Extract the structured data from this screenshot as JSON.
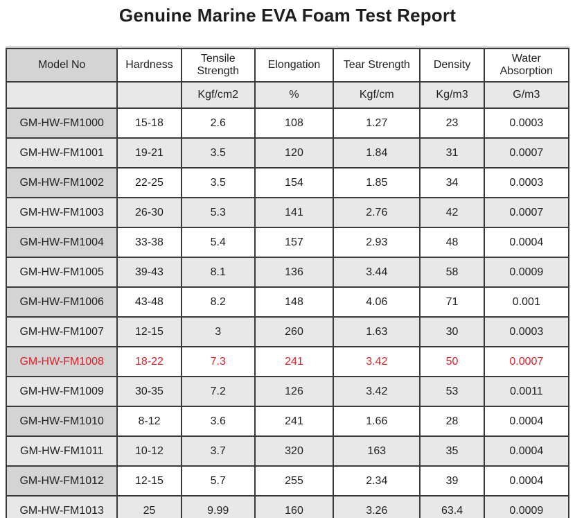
{
  "page": {
    "title": "Genuine Marine EVA Foam Test Report"
  },
  "table": {
    "columns": [
      {
        "label": "Model No",
        "unit": ""
      },
      {
        "label": "Hardness",
        "unit": ""
      },
      {
        "label": "Tensile Strength",
        "unit": "Kgf/cm2"
      },
      {
        "label": "Elongation",
        "unit": "%"
      },
      {
        "label": "Tear Strength",
        "unit": "Kgf/cm"
      },
      {
        "label": "Density",
        "unit": "Kg/m3"
      },
      {
        "label": "Water Absorption",
        "unit": "G/m3"
      }
    ],
    "rows": [
      {
        "model": "GM-HW-FM1000",
        "hardness": "15-18",
        "tensile": "2.6",
        "elongation": "108",
        "tear": "1.27",
        "density": "23",
        "water": "0.0003",
        "highlight": false
      },
      {
        "model": "GM-HW-FM1001",
        "hardness": "19-21",
        "tensile": "3.5",
        "elongation": "120",
        "tear": "1.84",
        "density": "31",
        "water": "0.0007",
        "highlight": false
      },
      {
        "model": "GM-HW-FM1002",
        "hardness": "22-25",
        "tensile": "3.5",
        "elongation": "154",
        "tear": "1.85",
        "density": "34",
        "water": "0.0003",
        "highlight": false
      },
      {
        "model": "GM-HW-FM1003",
        "hardness": "26-30",
        "tensile": "5.3",
        "elongation": "141",
        "tear": "2.76",
        "density": "42",
        "water": "0.0007",
        "highlight": false
      },
      {
        "model": "GM-HW-FM1004",
        "hardness": "33-38",
        "tensile": "5.4",
        "elongation": "157",
        "tear": "2.93",
        "density": "48",
        "water": "0.0004",
        "highlight": false
      },
      {
        "model": "GM-HW-FM1005",
        "hardness": "39-43",
        "tensile": "8.1",
        "elongation": "136",
        "tear": "3.44",
        "density": "58",
        "water": "0.0009",
        "highlight": false
      },
      {
        "model": "GM-HW-FM1006",
        "hardness": "43-48",
        "tensile": "8.2",
        "elongation": "148",
        "tear": "4.06",
        "density": "71",
        "water": "0.001",
        "highlight": false
      },
      {
        "model": "GM-HW-FM1007",
        "hardness": "12-15",
        "tensile": "3",
        "elongation": "260",
        "tear": "1.63",
        "density": "30",
        "water": "0.0003",
        "highlight": false
      },
      {
        "model": "GM-HW-FM1008",
        "hardness": "18-22",
        "tensile": "7.3",
        "elongation": "241",
        "tear": "3.42",
        "density": "50",
        "water": "0.0007",
        "highlight": true
      },
      {
        "model": "GM-HW-FM1009",
        "hardness": "30-35",
        "tensile": "7.2",
        "elongation": "126",
        "tear": "3.42",
        "density": "53",
        "water": "0.0011",
        "highlight": false
      },
      {
        "model": "GM-HW-FM1010",
        "hardness": "8-12",
        "tensile": "3.6",
        "elongation": "241",
        "tear": "1.66",
        "density": "28",
        "water": "0.0004",
        "highlight": false
      },
      {
        "model": "GM-HW-FM1011",
        "hardness": "10-12",
        "tensile": "3.7",
        "elongation": "320",
        "tear": "163",
        "density": "35",
        "water": "0.0004",
        "highlight": false
      },
      {
        "model": "GM-HW-FM1012",
        "hardness": "12-15",
        "tensile": "5.7",
        "elongation": "255",
        "tear": "2.34",
        "density": "39",
        "water": "0.0004",
        "highlight": false
      },
      {
        "model": "GM-HW-FM1013",
        "hardness": "25",
        "tensile": "9.99",
        "elongation": "160",
        "tear": "3.26",
        "density": "63.4",
        "water": "0.0009",
        "highlight": false
      }
    ],
    "colors": {
      "highlight_text": "#e01e26",
      "model_column_bg": "#d4d4d4",
      "alt_row_bg": "#e8e8e8",
      "border": "#3a3a3a"
    }
  }
}
